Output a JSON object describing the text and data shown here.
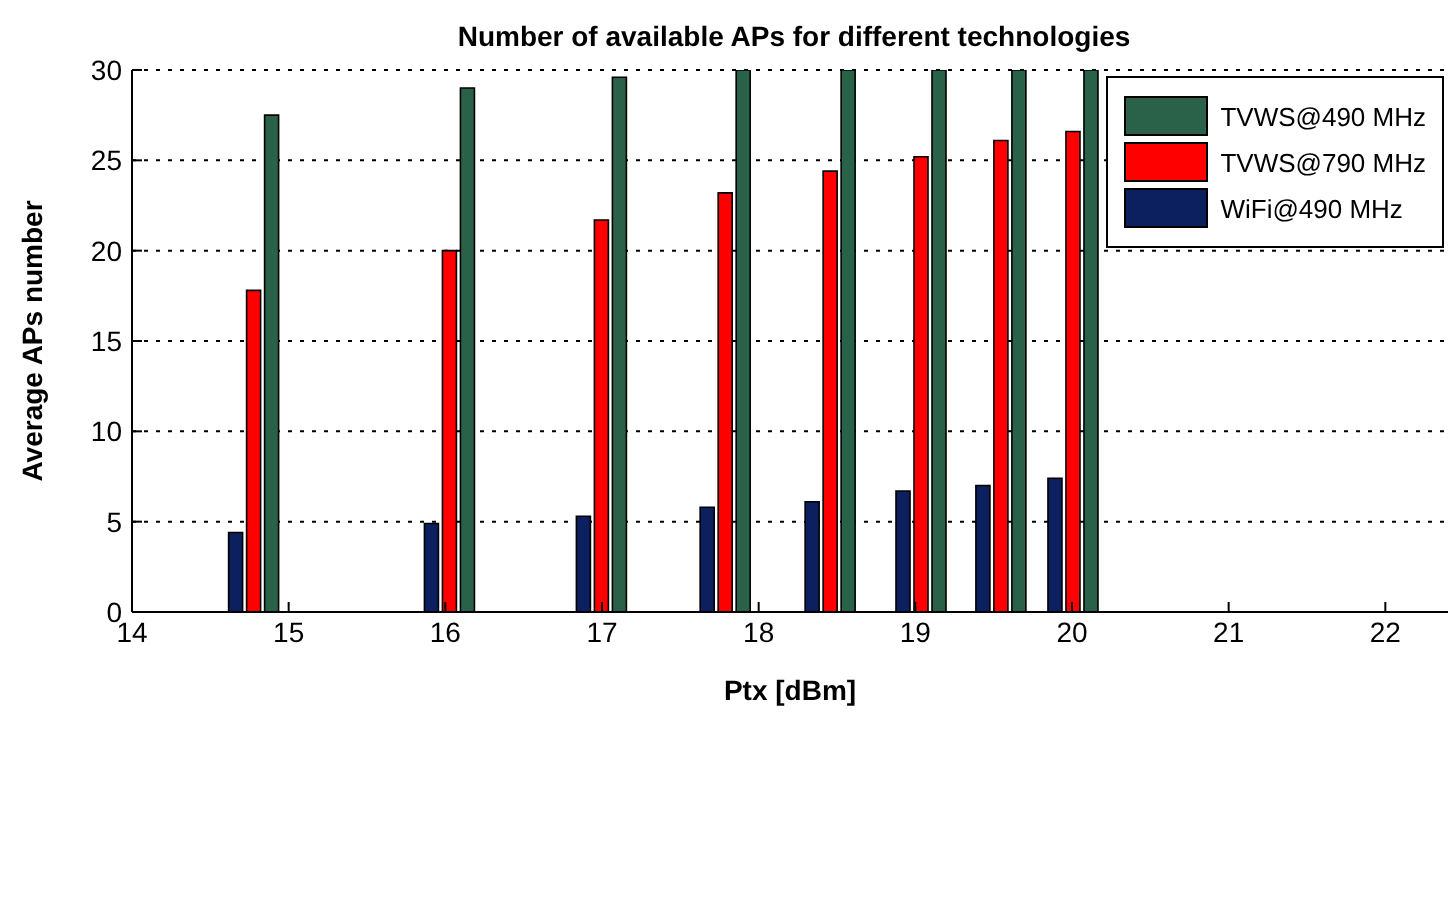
{
  "chart_data": {
    "type": "bar",
    "title": "Number of available APs for different technologies",
    "xlabel": "Ptx [dBm]",
    "ylabel": "Average APs number",
    "x": [
      14.77,
      16.02,
      16.99,
      17.78,
      18.45,
      19.03,
      19.54,
      20
    ],
    "series": [
      {
        "name": "WiFi@490 MHz",
        "color": "#0c1f5e",
        "values": [
          4.4,
          4.9,
          5.3,
          5.8,
          6.1,
          6.7,
          7.0,
          7.4
        ]
      },
      {
        "name": "TVWS@790 MHz",
        "color": "#ff0000",
        "values": [
          17.8,
          20.0,
          21.7,
          23.2,
          24.4,
          25.2,
          26.1,
          26.6
        ]
      },
      {
        "name": "TVWS@490 MHz",
        "color": "#2a6249",
        "values": [
          27.5,
          29.0,
          29.6,
          30,
          30,
          30,
          30,
          30
        ]
      }
    ],
    "xlim": [
      14,
      22.4
    ],
    "xticks": [
      14,
      15,
      16,
      17,
      18,
      19,
      20,
      21,
      22
    ],
    "ylim": [
      0,
      30
    ],
    "yticks": [
      0,
      5,
      10,
      15,
      20,
      25,
      30
    ],
    "grid": "y",
    "legend": "top right"
  }
}
